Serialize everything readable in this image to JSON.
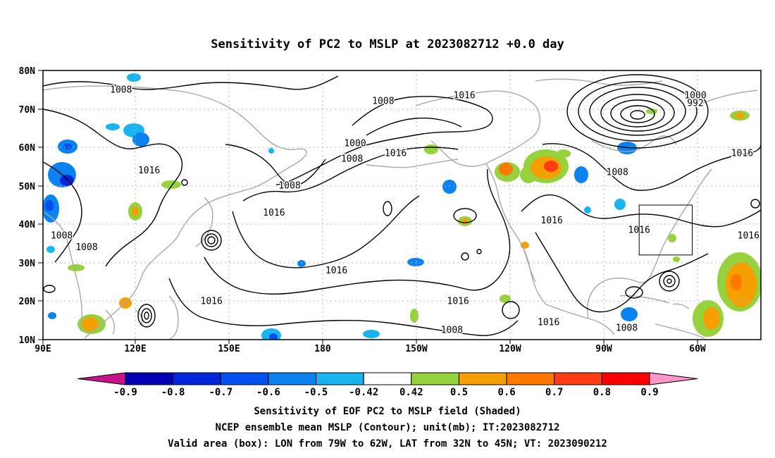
{
  "title": "Sensitivity of PC2 to MSLP at 2023082712 +0.0 day",
  "lat_ticks": [
    "80N",
    "70N",
    "60N",
    "50N",
    "40N",
    "30N",
    "20N",
    "10N"
  ],
  "lon_ticks": [
    "90E",
    "120E",
    "150E",
    "180",
    "150W",
    "120W",
    "90W",
    "60W"
  ],
  "contour_labels": [
    {
      "text": "1008",
      "lon": 115,
      "lat": 75
    },
    {
      "text": "1016",
      "lon": 225,
      "lat": 73.5
    },
    {
      "text": "1008",
      "lon": 199,
      "lat": 72
    },
    {
      "text": "1000",
      "lon": 299,
      "lat": 73.5
    },
    {
      "text": "992",
      "lon": 299,
      "lat": 71.5
    },
    {
      "text": "1000",
      "lon": 190,
      "lat": 61
    },
    {
      "text": "1008",
      "lon": 189,
      "lat": 57
    },
    {
      "text": "1016",
      "lon": 203,
      "lat": 58.5
    },
    {
      "text": "1016",
      "lon": 124,
      "lat": 54
    },
    {
      "text": "1008",
      "lon": 169,
      "lat": 50
    },
    {
      "text": "1016",
      "lon": 164,
      "lat": 43
    },
    {
      "text": "1008",
      "lon": 274,
      "lat": 53.5
    },
    {
      "text": "1016",
      "lon": 314,
      "lat": 58.5
    },
    {
      "text": "1016",
      "lon": 253,
      "lat": 41
    },
    {
      "text": "1016",
      "lon": 281,
      "lat": 38.5
    },
    {
      "text": "1016",
      "lon": 316,
      "lat": 37
    },
    {
      "text": "1008",
      "lon": 96,
      "lat": 37
    },
    {
      "text": "1008",
      "lon": 104,
      "lat": 34
    },
    {
      "text": "1016",
      "lon": 184,
      "lat": 28
    },
    {
      "text": "1016",
      "lon": 144,
      "lat": 20
    },
    {
      "text": "1016",
      "lon": 223,
      "lat": 20
    },
    {
      "text": "1016",
      "lon": 252,
      "lat": 14.5
    },
    {
      "text": "1008",
      "lon": 221,
      "lat": 12.5
    },
    {
      "text": "1008",
      "lon": 277,
      "lat": 13
    }
  ],
  "valid_box": {
    "lon_from": -79,
    "lon_to": -62,
    "lat_from": 32,
    "lat_to": 45
  },
  "colorbar": {
    "levels": [
      "-0.9",
      "-0.8",
      "-0.7",
      "-0.6",
      "-0.5",
      "-0.42",
      "0.42",
      "0.5",
      "0.6",
      "0.7",
      "0.8",
      "0.9"
    ],
    "colors": [
      "#0000b4",
      "#0026dc",
      "#0050f0",
      "#0a82f0",
      "#19b4f0",
      "#ffffff",
      "#96d23c",
      "#f5a000",
      "#ff7800",
      "#ff3c14",
      "#ff0000"
    ],
    "under_color": "#c8148c",
    "over_color": "#ff96c8"
  },
  "caption": {
    "line1": "Sensitivity of EOF PC2 to MSLP field (Shaded)",
    "line2": "NCEP ensemble mean MSLP (Contour); unit(mb); IT:2023082712",
    "line3": "Valid area (box): LON from 79W to 62W, LAT from 32N to 45N; VT: 2023090212"
  }
}
